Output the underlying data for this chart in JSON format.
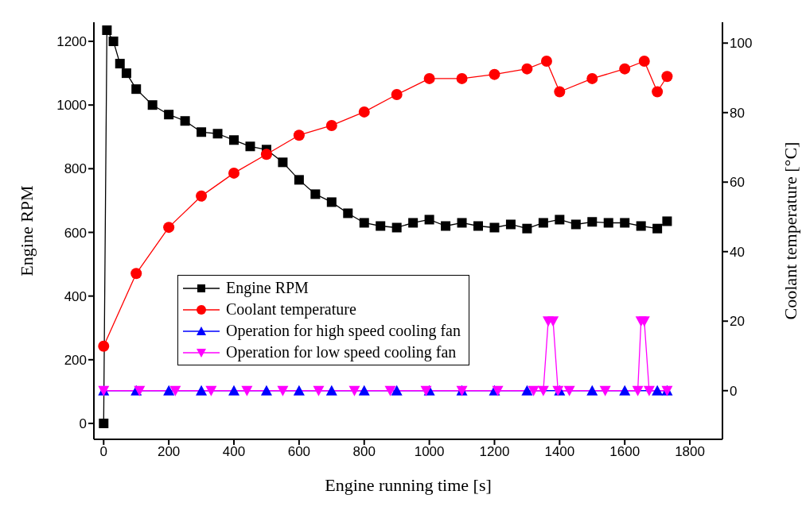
{
  "chart_data": {
    "type": "line",
    "xlabel": "Engine running time [s]",
    "ylabel": "Engine RPM",
    "y2label": "Coolant temperature [°C]",
    "xlim": [
      -30,
      1900
    ],
    "xticks": [
      0,
      200,
      400,
      600,
      800,
      1000,
      1200,
      1400,
      1600,
      1800
    ],
    "ylim": [
      -50,
      1260
    ],
    "yticks": [
      0,
      200,
      400,
      600,
      800,
      1000,
      1200
    ],
    "y2lim": [
      -14,
      106
    ],
    "y2ticks": [
      0,
      20,
      40,
      60,
      80,
      100
    ],
    "grid": false,
    "legend": "bottom left",
    "line_style": "solid",
    "series": [
      {
        "name": "Engine RPM",
        "color": "#000000",
        "marker": "square",
        "x": [
          0,
          10,
          30,
          50,
          70,
          100,
          150,
          200,
          250,
          300,
          350,
          400,
          450,
          500,
          550,
          600,
          650,
          700,
          750,
          800,
          850,
          900,
          950,
          1000,
          1050,
          1100,
          1150,
          1200,
          1250,
          1300,
          1350,
          1400,
          1450,
          1500,
          1550,
          1600,
          1650,
          1700,
          1730
        ],
        "values": [
          0,
          1235,
          1200,
          1130,
          1100,
          1050,
          1000,
          970,
          950,
          915,
          910,
          890,
          870,
          860,
          820,
          765,
          720,
          695,
          660,
          630,
          620,
          615,
          630,
          640,
          620,
          630,
          620,
          615,
          625,
          612,
          630,
          640,
          625,
          633,
          630,
          630,
          620,
          612,
          635
        ]
      },
      {
        "name": "Coolant temperature",
        "color": "#ff0000",
        "marker": "circle",
        "axis": "y2",
        "x": [
          0,
          100,
          200,
          300,
          400,
          500,
          600,
          700,
          800,
          900,
          1000,
          1100,
          1200,
          1300,
          1360,
          1400,
          1500,
          1600,
          1660,
          1700,
          1730
        ],
        "values": [
          12.8,
          33.7,
          47,
          56,
          62.6,
          68,
          73.5,
          76.3,
          80.2,
          85.2,
          89.8,
          89.8,
          91,
          92.6,
          94.8,
          86,
          89.8,
          92.6,
          94.8,
          86,
          90.4
        ]
      },
      {
        "name": "Operation for high speed cooling fan",
        "color": "#0000ff",
        "marker": "triangle",
        "axis": "y2",
        "x": [
          0,
          100,
          200,
          300,
          400,
          500,
          600,
          700,
          800,
          900,
          1000,
          1100,
          1200,
          1300,
          1400,
          1500,
          1600,
          1700,
          1730
        ],
        "values": [
          0,
          0,
          0,
          0,
          0,
          0,
          0,
          0,
          0,
          0,
          0,
          0,
          0,
          0,
          0,
          0,
          0,
          0,
          0
        ]
      },
      {
        "name": "Operation for low speed cooling fan",
        "color": "#ff00ff",
        "marker": "triangle-down",
        "axis": "y2",
        "x": [
          0,
          110,
          220,
          330,
          440,
          550,
          660,
          770,
          880,
          990,
          1100,
          1210,
          1320,
          1350,
          1365,
          1380,
          1395,
          1430,
          1540,
          1640,
          1650,
          1660,
          1675,
          1730
        ],
        "values": [
          0,
          0,
          0,
          0,
          0,
          0,
          0,
          0,
          0,
          0,
          0,
          0,
          0,
          0,
          20,
          20,
          0,
          0,
          0,
          0,
          20,
          20,
          0,
          0
        ]
      }
    ]
  }
}
